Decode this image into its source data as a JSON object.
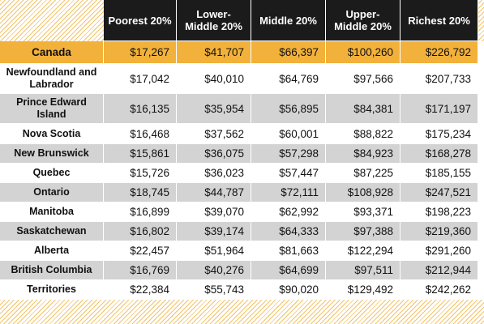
{
  "chart_data": {
    "type": "table",
    "columns": [
      "Poorest 20%",
      "Lower-Middle 20%",
      "Middle 20%",
      "Upper-Middle 20%",
      "Richest 20%"
    ],
    "rows": [
      {
        "region": "Canada",
        "values": [
          "$17,267",
          "$41,707",
          "$66,397",
          "$100,260",
          "$226,792"
        ]
      },
      {
        "region": "Newfoundland and Labrador",
        "values": [
          "$17,042",
          "$40,010",
          "$64,769",
          "$97,566",
          "$207,733"
        ]
      },
      {
        "region": "Prince Edward Island",
        "values": [
          "$16,135",
          "$35,954",
          "$56,895",
          "$84,381",
          "$171,197"
        ]
      },
      {
        "region": "Nova Scotia",
        "values": [
          "$16,468",
          "$37,562",
          "$60,001",
          "$88,822",
          "$175,234"
        ]
      },
      {
        "region": "New Brunswick",
        "values": [
          "$15,861",
          "$36,075",
          "$57,298",
          "$84,923",
          "$168,278"
        ]
      },
      {
        "region": "Quebec",
        "values": [
          "$15,726",
          "$36,023",
          "$57,447",
          "$87,225",
          "$185,155"
        ]
      },
      {
        "region": "Ontario",
        "values": [
          "$18,745",
          "$44,787",
          "$72,111",
          "$108,928",
          "$247,521"
        ]
      },
      {
        "region": "Manitoba",
        "values": [
          "$16,899",
          "$39,070",
          "$62,992",
          "$93,371",
          "$198,223"
        ]
      },
      {
        "region": "Saskatchewan",
        "values": [
          "$16,802",
          "$39,174",
          "$64,333",
          "$97,388",
          "$219,360"
        ]
      },
      {
        "region": "Alberta",
        "values": [
          "$22,457",
          "$51,964",
          "$81,663",
          "$122,294",
          "$291,260"
        ]
      },
      {
        "region": "British Columbia",
        "values": [
          "$16,769",
          "$40,276",
          "$64,699",
          "$97,511",
          "$212,944"
        ]
      },
      {
        "region": "Territories",
        "values": [
          "$22,384",
          "$55,743",
          "$90,020",
          "$129,492",
          "$242,262"
        ]
      }
    ]
  },
  "colors": {
    "header_bg": "#1b1b1b",
    "highlight_row": "#f2b13a",
    "stripe_row": "#d3d3d3",
    "hatch": "#f1c36a"
  }
}
